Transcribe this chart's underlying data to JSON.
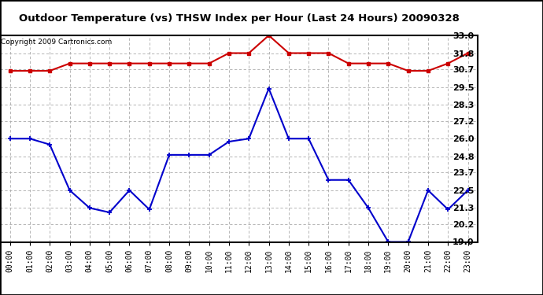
{
  "title": "Outdoor Temperature (vs) THSW Index per Hour (Last 24 Hours) 20090328",
  "copyright": "Copyright 2009 Cartronics.com",
  "hours": [
    "00:00",
    "01:00",
    "02:00",
    "03:00",
    "04:00",
    "05:00",
    "06:00",
    "07:00",
    "08:00",
    "09:00",
    "10:00",
    "11:00",
    "12:00",
    "13:00",
    "14:00",
    "15:00",
    "16:00",
    "17:00",
    "18:00",
    "19:00",
    "20:00",
    "21:00",
    "22:00",
    "23:00"
  ],
  "temp": [
    26.0,
    26.0,
    25.6,
    22.5,
    21.3,
    21.0,
    22.5,
    21.2,
    24.9,
    24.9,
    24.9,
    25.8,
    26.0,
    29.4,
    26.0,
    26.0,
    23.2,
    23.2,
    21.3,
    19.0,
    19.0,
    22.5,
    21.2,
    22.5
  ],
  "thsw": [
    30.6,
    30.6,
    30.6,
    31.1,
    31.1,
    31.1,
    31.1,
    31.1,
    31.1,
    31.1,
    31.1,
    31.8,
    31.8,
    33.0,
    31.8,
    31.8,
    31.8,
    31.1,
    31.1,
    31.1,
    30.6,
    30.6,
    31.1,
    31.8
  ],
  "temp_color": "#0000cc",
  "thsw_color": "#cc0000",
  "bg_color": "#ffffff",
  "grid_color": "#aaaaaa",
  "ylim_min": 19.0,
  "ylim_max": 33.0,
  "yticks": [
    19.0,
    20.2,
    21.3,
    22.5,
    23.7,
    24.8,
    26.0,
    27.2,
    28.3,
    29.5,
    30.7,
    31.8,
    33.0
  ]
}
